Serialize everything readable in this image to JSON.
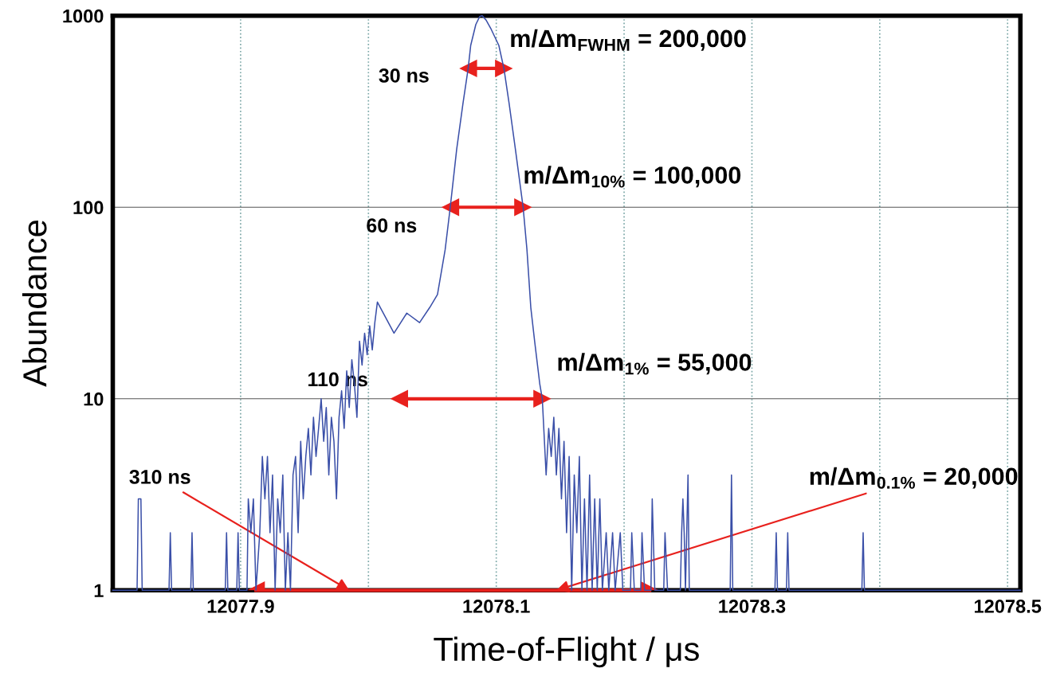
{
  "chart_data": {
    "type": "line",
    "xlabel": "Time-of-Flight / μs",
    "ylabel": "Abundance",
    "log": true,
    "grid": true,
    "xlim": [
      12077.8,
      12078.51
    ],
    "ylim": [
      1,
      1000
    ],
    "xticks": [
      {
        "value": 12077.8,
        "label": null
      },
      12077.9,
      {
        "value": 12078.0,
        "label": null
      },
      12078.1,
      {
        "value": 12078.2,
        "label": null
      },
      12078.3,
      {
        "value": 12078.4,
        "label": null
      },
      12078.5
    ],
    "yticks": [
      1,
      10,
      100,
      1000
    ],
    "series": [
      {
        "color": "#3a4fa8",
        "x": [
          12077.8,
          12077.819,
          12077.82,
          12077.822,
          12077.823,
          12077.844,
          12077.845,
          12077.846,
          12077.861,
          12077.862,
          12077.863,
          12077.888,
          12077.889,
          12077.89,
          12077.897,
          12077.898,
          12077.899,
          12077.905,
          12077.906,
          12077.908,
          12077.91,
          12077.912,
          12077.915,
          12077.917,
          12077.919,
          12077.921,
          12077.923,
          12077.925,
          12077.927,
          12077.929,
          12077.931,
          12077.933,
          12077.935,
          12077.937,
          12077.939,
          12077.941,
          12077.943,
          12077.945,
          12077.947,
          12077.949,
          12077.951,
          12077.953,
          12077.955,
          12077.957,
          12077.959,
          12077.961,
          12077.963,
          12077.965,
          12077.967,
          12077.969,
          12077.971,
          12077.973,
          12077.975,
          12077.977,
          12077.979,
          12077.981,
          12077.983,
          12077.985,
          12077.987,
          12077.989,
          12077.991,
          12077.993,
          12077.995,
          12077.997,
          12077.999,
          12078.001,
          12078.003,
          12078.005,
          12078.007,
          12078.02,
          12078.03,
          12078.04,
          12078.048,
          12078.054,
          12078.06,
          12078.064,
          12078.069,
          12078.074,
          12078.078,
          12078.08,
          12078.084,
          12078.087,
          12078.089,
          12078.092,
          12078.096,
          12078.102,
          12078.106,
          12078.11,
          12078.115,
          12078.121,
          12078.124,
          12078.127,
          12078.13,
          12078.134,
          12078.136,
          12078.139,
          12078.141,
          12078.143,
          12078.145,
          12078.147,
          12078.149,
          12078.151,
          12078.153,
          12078.155,
          12078.157,
          12078.159,
          12078.161,
          12078.163,
          12078.165,
          12078.167,
          12078.169,
          12078.171,
          12078.173,
          12078.175,
          12078.177,
          12078.179,
          12078.181,
          12078.183,
          12078.186,
          12078.188,
          12078.191,
          12078.193,
          12078.197,
          12078.199,
          12078.205,
          12078.206,
          12078.208,
          12078.213,
          12078.214,
          12078.216,
          12078.221,
          12078.222,
          12078.224,
          12078.231,
          12078.232,
          12078.234,
          12078.244,
          12078.245,
          12078.246,
          12078.247,
          12078.248,
          12078.25,
          12078.251,
          12078.283,
          12078.284,
          12078.285,
          12078.318,
          12078.319,
          12078.32,
          12078.327,
          12078.328,
          12078.329,
          12078.386,
          12078.387,
          12078.388,
          12078.51
        ],
        "values": [
          1,
          1,
          3,
          3,
          1,
          1,
          2,
          1,
          1,
          2,
          1,
          1,
          2,
          1,
          1,
          2,
          1,
          1,
          3,
          2,
          3,
          1,
          2,
          5,
          3,
          5,
          2,
          4,
          1,
          3,
          2,
          4,
          1,
          2,
          1,
          4,
          5,
          2,
          6,
          3,
          5,
          7,
          4,
          8,
          5,
          7,
          10,
          6,
          9,
          4,
          8,
          6,
          3,
          8,
          11,
          7,
          14,
          9,
          16,
          12,
          8,
          20,
          15,
          22,
          17,
          24,
          18,
          25,
          32,
          22,
          28,
          25,
          30,
          35,
          60,
          100,
          200,
          350,
          530,
          700,
          900,
          990,
          1000,
          950,
          850,
          700,
          530,
          350,
          200,
          100,
          60,
          30,
          20,
          12,
          10,
          4,
          7,
          5,
          8,
          4,
          7,
          3,
          6,
          2,
          5,
          1,
          4,
          2,
          5,
          1,
          3,
          1,
          4,
          1,
          3,
          1,
          3,
          1,
          2,
          1,
          2,
          1,
          2,
          1,
          1,
          2,
          1,
          1,
          2,
          1,
          1,
          3,
          1,
          1,
          2,
          1,
          1,
          2,
          3,
          2,
          1,
          4,
          1,
          1,
          4,
          1,
          1,
          2,
          1,
          1,
          2,
          1,
          1,
          2,
          1,
          1
        ]
      },
      {
        "type": "line",
        "color": "#e8211d",
        "marker": "triangle",
        "x": [
          12078.078,
          12078.106
        ],
        "values": [
          531,
          531
        ]
      },
      {
        "type": "line",
        "color": "#e8211d",
        "marker": "triangle",
        "x": [
          12078.064,
          12078.121
        ],
        "values": [
          100,
          100
        ]
      },
      {
        "type": "line",
        "color": "#e8211d",
        "marker": "triangle",
        "x": [
          12078.024,
          12078.136
        ],
        "values": [
          10,
          10
        ]
      },
      {
        "type": "line",
        "color": "#e8211d",
        "marker": "triangle",
        "x": [
          12077.912,
          12078.22
        ],
        "values": [
          1,
          1
        ]
      }
    ],
    "annotations": [
      {
        "text": "30 ns",
        "x": 12078.078,
        "y": 531
      },
      {
        "text": "m/Δm$_{FWHM}$ = 200,000",
        "x": 12078.106,
        "y": 531
      },
      {
        "text": "60 ns",
        "x": 12078.064,
        "y": 100
      },
      {
        "text": "m/Δm$_{10%}$ = 100,000",
        "x": 12078.121,
        "y": 100
      },
      {
        "text": "110 ns",
        "x": 12078.024,
        "y": 10
      },
      {
        "text": "m/Δm$_{1%}$ = 55,000",
        "x": 12078.136,
        "y": 10
      },
      {
        "text": "310 ns",
        "x": 12077.985,
        "y": 1
      },
      {
        "text": "m/Δm$_{0.1%}$ = 20,000",
        "x": 12078.147,
        "y": 1
      }
    ]
  }
}
